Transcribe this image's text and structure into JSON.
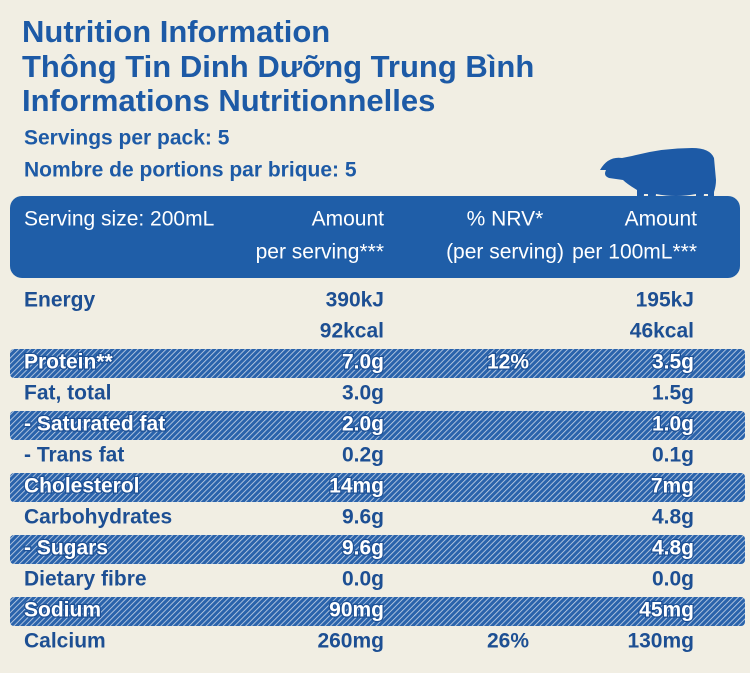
{
  "header": {
    "titles": [
      "Nutrition Information",
      "Thông Tin Dinh Dưỡng Trung Bình",
      "Informations Nutritionnelles"
    ],
    "servings": [
      "Servings per pack: 5",
      "Nombre de portions par brique: 5"
    ]
  },
  "table": {
    "columns": [
      [
        "Serving size: 200mL"
      ],
      [
        "Amount",
        "per serving***"
      ],
      [
        "% NRV*",
        "(per serving)"
      ],
      [
        "Amount",
        "per 100mL***"
      ]
    ],
    "rows": [
      {
        "label": "Energy",
        "per_serving": [
          "390kJ",
          "92kcal"
        ],
        "per_100ml": [
          "195kJ",
          "46kcal"
        ]
      },
      {
        "label": "Protein**",
        "per_serving": [
          "7.0g"
        ],
        "nrv": "12%",
        "per_100ml": [
          "3.5g"
        ]
      },
      {
        "label": "Fat, total",
        "per_serving": [
          "3.0g"
        ],
        "per_100ml": [
          "1.5g"
        ]
      },
      {
        "label": "- Saturated fat",
        "per_serving": [
          "2.0g"
        ],
        "per_100ml": [
          "1.0g"
        ]
      },
      {
        "label": "- Trans fat",
        "per_serving": [
          "0.2g"
        ],
        "per_100ml": [
          "0.1g"
        ]
      },
      {
        "label": "Cholesterol",
        "per_serving": [
          "14mg"
        ],
        "per_100ml": [
          "7mg"
        ]
      },
      {
        "label": "Carbohydrates",
        "per_serving": [
          "9.6g"
        ],
        "per_100ml": [
          "4.8g"
        ]
      },
      {
        "label": "- Sugars",
        "per_serving": [
          "9.6g"
        ],
        "per_100ml": [
          "4.8g"
        ]
      },
      {
        "label": "Dietary fibre",
        "per_serving": [
          "0.0g"
        ],
        "per_100ml": [
          "0.0g"
        ]
      },
      {
        "label": "Sodium",
        "per_serving": [
          "90mg"
        ],
        "per_100ml": [
          "45mg"
        ]
      },
      {
        "label": "Calcium",
        "per_serving": [
          "260mg"
        ],
        "nrv": "26%",
        "per_100ml": [
          "130mg"
        ]
      }
    ]
  }
}
